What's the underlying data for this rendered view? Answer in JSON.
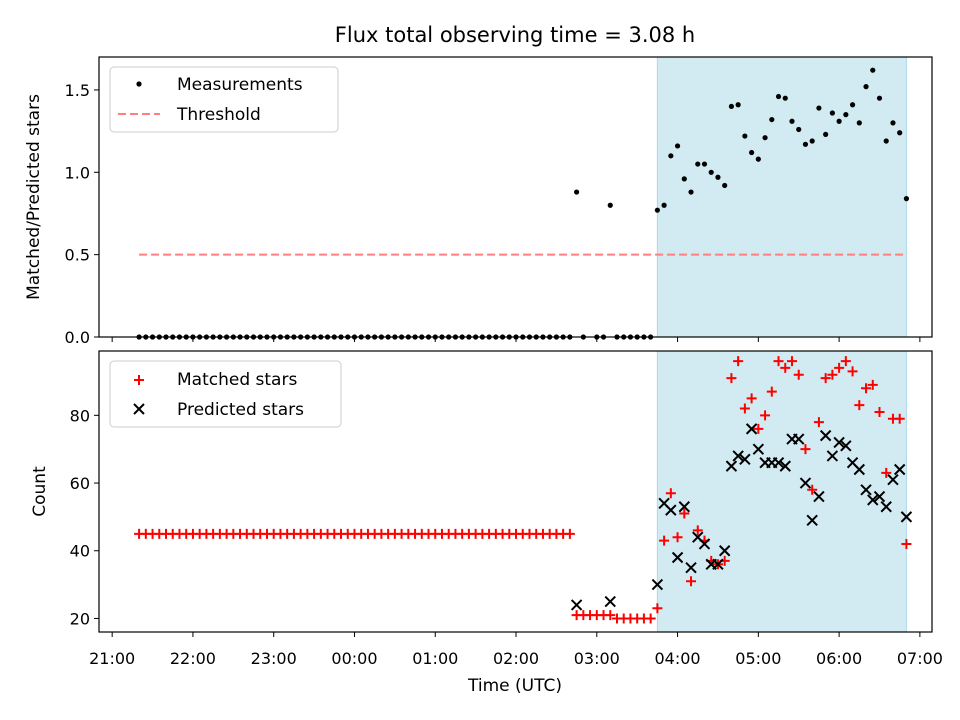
{
  "title": "Flux total observing time = 3.08 h",
  "colors": {
    "measurement": "#000000",
    "threshold": "#ff7f7f",
    "matched": "#ff0000",
    "predicted": "#000000",
    "span": "#add8e6"
  },
  "chart_data": [
    {
      "type": "scatter",
      "ylabel": "Matched/Predicted stars",
      "xlabel": "",
      "ylim": [
        0,
        1.7
      ],
      "yticks": [
        "0.0",
        "0.5",
        "1.0",
        "1.5"
      ],
      "shaded_span": [
        "03:45",
        "06:50"
      ],
      "legend_position": "top-left",
      "legend": [
        "Measurements",
        "Threshold"
      ],
      "threshold": {
        "name": "Threshold",
        "value": 0.5,
        "x_range": [
          "21:20",
          "06:50"
        ]
      },
      "series": [
        {
          "name": "Measurements",
          "zero_run": {
            "x_start": "21:20",
            "x_end": "02:40",
            "step_minutes": 5,
            "y": 0
          },
          "points": [
            [
              "02:45",
              0.88
            ],
            [
              "02:50",
              0
            ],
            [
              "03:00",
              0
            ],
            [
              "03:05",
              0
            ],
            [
              "03:10",
              0.8
            ],
            [
              "03:15",
              0
            ],
            [
              "03:20",
              0
            ],
            [
              "03:25",
              0
            ],
            [
              "03:30",
              0
            ],
            [
              "03:35",
              0
            ],
            [
              "03:40",
              0
            ],
            [
              "03:45",
              0.77
            ],
            [
              "03:50",
              0.8
            ],
            [
              "03:55",
              1.1
            ],
            [
              "04:00",
              1.16
            ],
            [
              "04:05",
              0.96
            ],
            [
              "04:10",
              0.88
            ],
            [
              "04:15",
              1.05
            ],
            [
              "04:20",
              1.05
            ],
            [
              "04:25",
              1.0
            ],
            [
              "04:30",
              0.97
            ],
            [
              "04:35",
              0.92
            ],
            [
              "04:40",
              1.4
            ],
            [
              "04:45",
              1.41
            ],
            [
              "04:50",
              1.22
            ],
            [
              "04:55",
              1.12
            ],
            [
              "05:00",
              1.08
            ],
            [
              "05:05",
              1.21
            ],
            [
              "05:10",
              1.32
            ],
            [
              "05:15",
              1.46
            ],
            [
              "05:20",
              1.45
            ],
            [
              "05:25",
              1.31
            ],
            [
              "05:30",
              1.26
            ],
            [
              "05:35",
              1.17
            ],
            [
              "05:40",
              1.19
            ],
            [
              "05:45",
              1.39
            ],
            [
              "05:50",
              1.23
            ],
            [
              "05:55",
              1.36
            ],
            [
              "06:00",
              1.31
            ],
            [
              "06:05",
              1.35
            ],
            [
              "06:10",
              1.41
            ],
            [
              "06:15",
              1.3
            ],
            [
              "06:20",
              1.52
            ],
            [
              "06:25",
              1.62
            ],
            [
              "06:30",
              1.45
            ],
            [
              "06:35",
              1.19
            ],
            [
              "06:40",
              1.3
            ],
            [
              "06:45",
              1.24
            ],
            [
              "06:50",
              0.84
            ]
          ]
        }
      ]
    },
    {
      "type": "scatter",
      "xlabel": "Time (UTC)",
      "ylabel": "Count",
      "ylim": [
        16,
        99
      ],
      "yticks": [
        "20",
        "40",
        "60",
        "80"
      ],
      "xticks": [
        "21:00",
        "22:00",
        "23:00",
        "00:00",
        "01:00",
        "02:00",
        "03:00",
        "04:00",
        "05:00",
        "06:00",
        "07:00"
      ],
      "shaded_span": [
        "03:45",
        "06:50"
      ],
      "legend_position": "top-left",
      "legend": [
        "Matched stars",
        "Predicted stars"
      ],
      "series": [
        {
          "name": "Matched stars",
          "const_run": {
            "x_start": "21:20",
            "x_end": "02:40",
            "step_minutes": 5,
            "y": 45
          },
          "points": [
            [
              "02:45",
              21
            ],
            [
              "02:50",
              21
            ],
            [
              "02:55",
              21
            ],
            [
              "03:00",
              21
            ],
            [
              "03:05",
              21
            ],
            [
              "03:10",
              21
            ],
            [
              "03:15",
              20
            ],
            [
              "03:20",
              20
            ],
            [
              "03:25",
              20
            ],
            [
              "03:30",
              20
            ],
            [
              "03:35",
              20
            ],
            [
              "03:40",
              20
            ],
            [
              "03:45",
              23
            ],
            [
              "03:50",
              43
            ],
            [
              "03:55",
              57
            ],
            [
              "04:00",
              44
            ],
            [
              "04:05",
              51
            ],
            [
              "04:10",
              31
            ],
            [
              "04:15",
              46
            ],
            [
              "04:20",
              43
            ],
            [
              "04:25",
              37
            ],
            [
              "04:30",
              36
            ],
            [
              "04:35",
              37
            ],
            [
              "04:40",
              91
            ],
            [
              "04:45",
              96
            ],
            [
              "04:50",
              82
            ],
            [
              "04:55",
              85
            ],
            [
              "05:00",
              76
            ],
            [
              "05:05",
              80
            ],
            [
              "05:10",
              87
            ],
            [
              "05:15",
              96
            ],
            [
              "05:20",
              94
            ],
            [
              "05:25",
              96
            ],
            [
              "05:30",
              92
            ],
            [
              "05:35",
              70
            ],
            [
              "05:40",
              58
            ],
            [
              "05:45",
              78
            ],
            [
              "05:50",
              91
            ],
            [
              "05:55",
              92
            ],
            [
              "06:00",
              94
            ],
            [
              "06:05",
              96
            ],
            [
              "06:10",
              93
            ],
            [
              "06:15",
              83
            ],
            [
              "06:20",
              88
            ],
            [
              "06:25",
              89
            ],
            [
              "06:30",
              81
            ],
            [
              "06:35",
              63
            ],
            [
              "06:40",
              79
            ],
            [
              "06:45",
              79
            ],
            [
              "06:50",
              42
            ]
          ]
        },
        {
          "name": "Predicted stars",
          "points": [
            [
              "02:45",
              24
            ],
            [
              "03:10",
              25
            ],
            [
              "03:45",
              30
            ],
            [
              "03:50",
              54
            ],
            [
              "03:55",
              52
            ],
            [
              "04:00",
              38
            ],
            [
              "04:05",
              53
            ],
            [
              "04:10",
              35
            ],
            [
              "04:15",
              44
            ],
            [
              "04:20",
              42
            ],
            [
              "04:25",
              36
            ],
            [
              "04:30",
              36
            ],
            [
              "04:35",
              40
            ],
            [
              "04:40",
              65
            ],
            [
              "04:45",
              68
            ],
            [
              "04:50",
              67
            ],
            [
              "04:55",
              76
            ],
            [
              "05:00",
              70
            ],
            [
              "05:05",
              66
            ],
            [
              "05:10",
              66
            ],
            [
              "05:15",
              66
            ],
            [
              "05:20",
              65
            ],
            [
              "05:25",
              73
            ],
            [
              "05:30",
              73
            ],
            [
              "05:35",
              60
            ],
            [
              "05:40",
              49
            ],
            [
              "05:45",
              56
            ],
            [
              "05:50",
              74
            ],
            [
              "05:55",
              68
            ],
            [
              "06:00",
              72
            ],
            [
              "06:05",
              71
            ],
            [
              "06:10",
              66
            ],
            [
              "06:15",
              64
            ],
            [
              "06:20",
              58
            ],
            [
              "06:25",
              55
            ],
            [
              "06:30",
              56
            ],
            [
              "06:35",
              53
            ],
            [
              "06:40",
              61
            ],
            [
              "06:45",
              64
            ],
            [
              "06:50",
              50
            ]
          ]
        }
      ]
    }
  ]
}
